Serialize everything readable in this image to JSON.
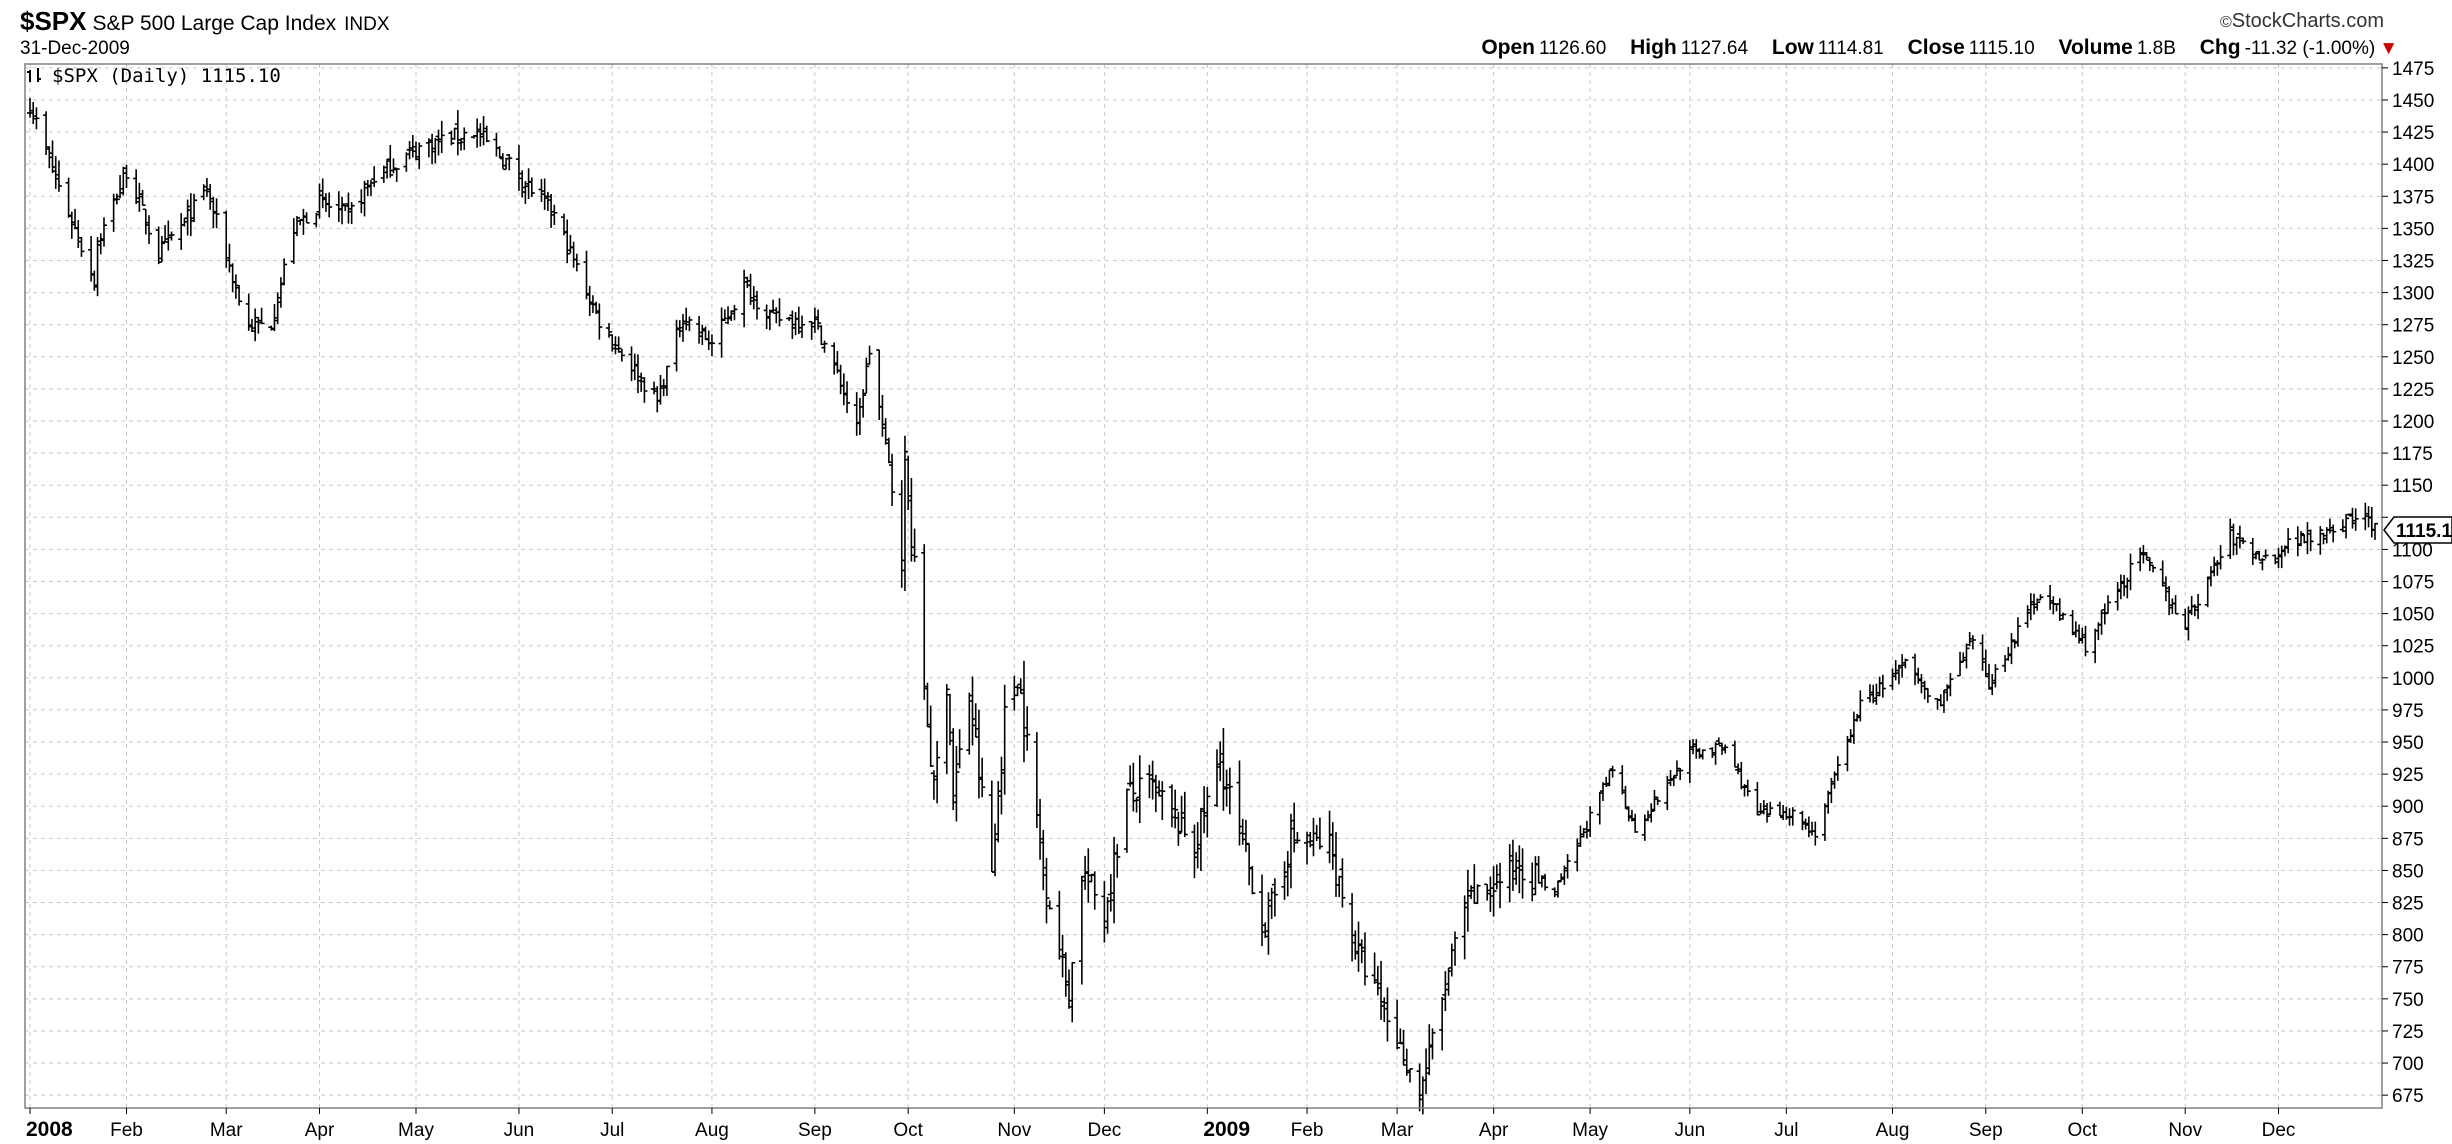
{
  "header": {
    "symbol": "$SPX",
    "name": "S&P 500 Large Cap Index",
    "exchange": "INDX",
    "date": "31-Dec-2009",
    "brand": "StockCharts.com",
    "open_label": "Open",
    "open": "1126.60",
    "high_label": "High",
    "high": "1127.64",
    "low_label": "Low",
    "low": "1114.81",
    "close_label": "Close",
    "close": "1115.10",
    "volume_label": "Volume",
    "volume": "1.8B",
    "chg_label": "Chg",
    "chg": "-11.32 (-1.00%)"
  },
  "colors": {
    "bars": "#000000",
    "grid": "#c8c8c8",
    "frame": "#808080",
    "down_arrow": "#cc0000"
  },
  "chart_data": {
    "type": "bar",
    "subtype": "ohlc",
    "legend": "$SPX (Daily) 1115.10",
    "last_value_label": "1115.1",
    "x_axis": "date",
    "x_range": [
      "2008-01-02",
      "2009-12-31"
    ],
    "ylim": [
      665,
      1478
    ],
    "y_ticks": [
      675,
      700,
      725,
      750,
      775,
      800,
      825,
      850,
      875,
      900,
      925,
      950,
      975,
      1000,
      1025,
      1050,
      1075,
      1100,
      1125,
      1150,
      1175,
      1200,
      1225,
      1250,
      1275,
      1300,
      1325,
      1350,
      1375,
      1400,
      1425,
      1450,
      1475
    ],
    "y_tick_labels": [
      "675",
      "700",
      "725",
      "750",
      "775",
      "800",
      "825",
      "850",
      "875",
      "900",
      "925",
      "950",
      "975",
      "1000",
      "1025",
      "1050",
      "1075",
      "1100",
      "",
      "1150",
      "1175",
      "1200",
      "1225",
      "1250",
      "1275",
      "1300",
      "1325",
      "1350",
      "1375",
      "1400",
      "1425",
      "1450",
      "1475"
    ],
    "x_ticks": [
      {
        "date": "2008-01-02",
        "label": "2008",
        "bold": true
      },
      {
        "date": "2008-02-01",
        "label": "Feb"
      },
      {
        "date": "2008-03-03",
        "label": "Mar"
      },
      {
        "date": "2008-04-01",
        "label": "Apr"
      },
      {
        "date": "2008-05-01",
        "label": "May"
      },
      {
        "date": "2008-06-02",
        "label": "Jun"
      },
      {
        "date": "2008-07-01",
        "label": "Jul"
      },
      {
        "date": "2008-08-01",
        "label": "Aug"
      },
      {
        "date": "2008-09-02",
        "label": "Sep"
      },
      {
        "date": "2008-10-01",
        "label": "Oct"
      },
      {
        "date": "2008-11-03",
        "label": "Nov"
      },
      {
        "date": "2008-12-01",
        "label": "Dec"
      },
      {
        "date": "2009-01-02",
        "label": "2009",
        "bold": true
      },
      {
        "date": "2009-02-02",
        "label": "Feb"
      },
      {
        "date": "2009-03-02",
        "label": "Mar"
      },
      {
        "date": "2009-04-01",
        "label": "Apr"
      },
      {
        "date": "2009-05-01",
        "label": "May"
      },
      {
        "date": "2009-06-01",
        "label": "Jun"
      },
      {
        "date": "2009-07-01",
        "label": "Jul"
      },
      {
        "date": "2009-08-03",
        "label": "Aug"
      },
      {
        "date": "2009-09-01",
        "label": "Sep"
      },
      {
        "date": "2009-10-01",
        "label": "Oct"
      },
      {
        "date": "2009-11-02",
        "label": "Nov"
      },
      {
        "date": "2009-12-01",
        "label": "Dec"
      }
    ],
    "close_path": [
      [
        "2008-01-02",
        1447
      ],
      [
        "2008-01-09",
        1395
      ],
      [
        "2008-01-22",
        1310
      ],
      [
        "2008-01-23",
        1338
      ],
      [
        "2008-02-01",
        1395
      ],
      [
        "2008-02-11",
        1330
      ],
      [
        "2008-02-19",
        1355
      ],
      [
        "2008-02-26",
        1380
      ],
      [
        "2008-03-07",
        1295
      ],
      [
        "2008-03-10",
        1273
      ],
      [
        "2008-03-17",
        1276
      ],
      [
        "2008-03-24",
        1350
      ],
      [
        "2008-04-01",
        1370
      ],
      [
        "2008-04-10",
        1360
      ],
      [
        "2008-04-18",
        1390
      ],
      [
        "2008-05-02",
        1413
      ],
      [
        "2008-05-19",
        1426
      ],
      [
        "2008-05-30",
        1400
      ],
      [
        "2008-06-13",
        1360
      ],
      [
        "2008-06-27",
        1278
      ],
      [
        "2008-07-15",
        1215
      ],
      [
        "2008-07-23",
        1282
      ],
      [
        "2008-08-01",
        1260
      ],
      [
        "2008-08-11",
        1305
      ],
      [
        "2008-08-20",
        1280
      ],
      [
        "2008-09-02",
        1278
      ],
      [
        "2008-09-10",
        1230
      ],
      [
        "2008-09-15",
        1193
      ],
      [
        "2008-09-19",
        1255
      ],
      [
        "2008-09-29",
        1106
      ],
      [
        "2008-09-30",
        1166
      ],
      [
        "2008-10-09",
        910
      ],
      [
        "2008-10-13",
        1003
      ],
      [
        "2008-10-15",
        908
      ],
      [
        "2008-10-20",
        985
      ],
      [
        "2008-10-27",
        848
      ],
      [
        "2008-10-31",
        968
      ],
      [
        "2008-11-04",
        1005
      ],
      [
        "2008-11-12",
        852
      ],
      [
        "2008-11-20",
        752
      ],
      [
        "2008-11-24",
        851
      ],
      [
        "2008-12-01",
        816
      ],
      [
        "2008-12-08",
        909
      ],
      [
        "2008-12-16",
        913
      ],
      [
        "2008-12-29",
        870
      ],
      [
        "2009-01-06",
        935
      ],
      [
        "2009-01-20",
        805
      ],
      [
        "2009-01-28",
        874
      ],
      [
        "2009-02-09",
        870
      ],
      [
        "2009-02-17",
        790
      ],
      [
        "2009-02-27",
        735
      ],
      [
        "2009-03-09",
        676
      ],
      [
        "2009-03-23",
        822
      ],
      [
        "2009-04-09",
        856
      ],
      [
        "2009-04-20",
        832
      ],
      [
        "2009-05-08",
        929
      ],
      [
        "2009-05-15",
        882
      ],
      [
        "2009-06-01",
        942
      ],
      [
        "2009-06-12",
        946
      ],
      [
        "2009-06-22",
        893
      ],
      [
        "2009-07-02",
        896
      ],
      [
        "2009-07-10",
        879
      ],
      [
        "2009-07-24",
        979
      ],
      [
        "2009-08-07",
        1010
      ],
      [
        "2009-08-17",
        979
      ],
      [
        "2009-08-28",
        1028
      ],
      [
        "2009-09-02",
        995
      ],
      [
        "2009-09-18",
        1068
      ],
      [
        "2009-10-02",
        1025
      ],
      [
        "2009-10-19",
        1097
      ],
      [
        "2009-11-02",
        1042
      ],
      [
        "2009-11-16",
        1110
      ],
      [
        "2009-11-27",
        1092
      ],
      [
        "2009-12-04",
        1105
      ],
      [
        "2009-12-28",
        1127
      ],
      [
        "2009-12-31",
        1115.1
      ]
    ]
  }
}
